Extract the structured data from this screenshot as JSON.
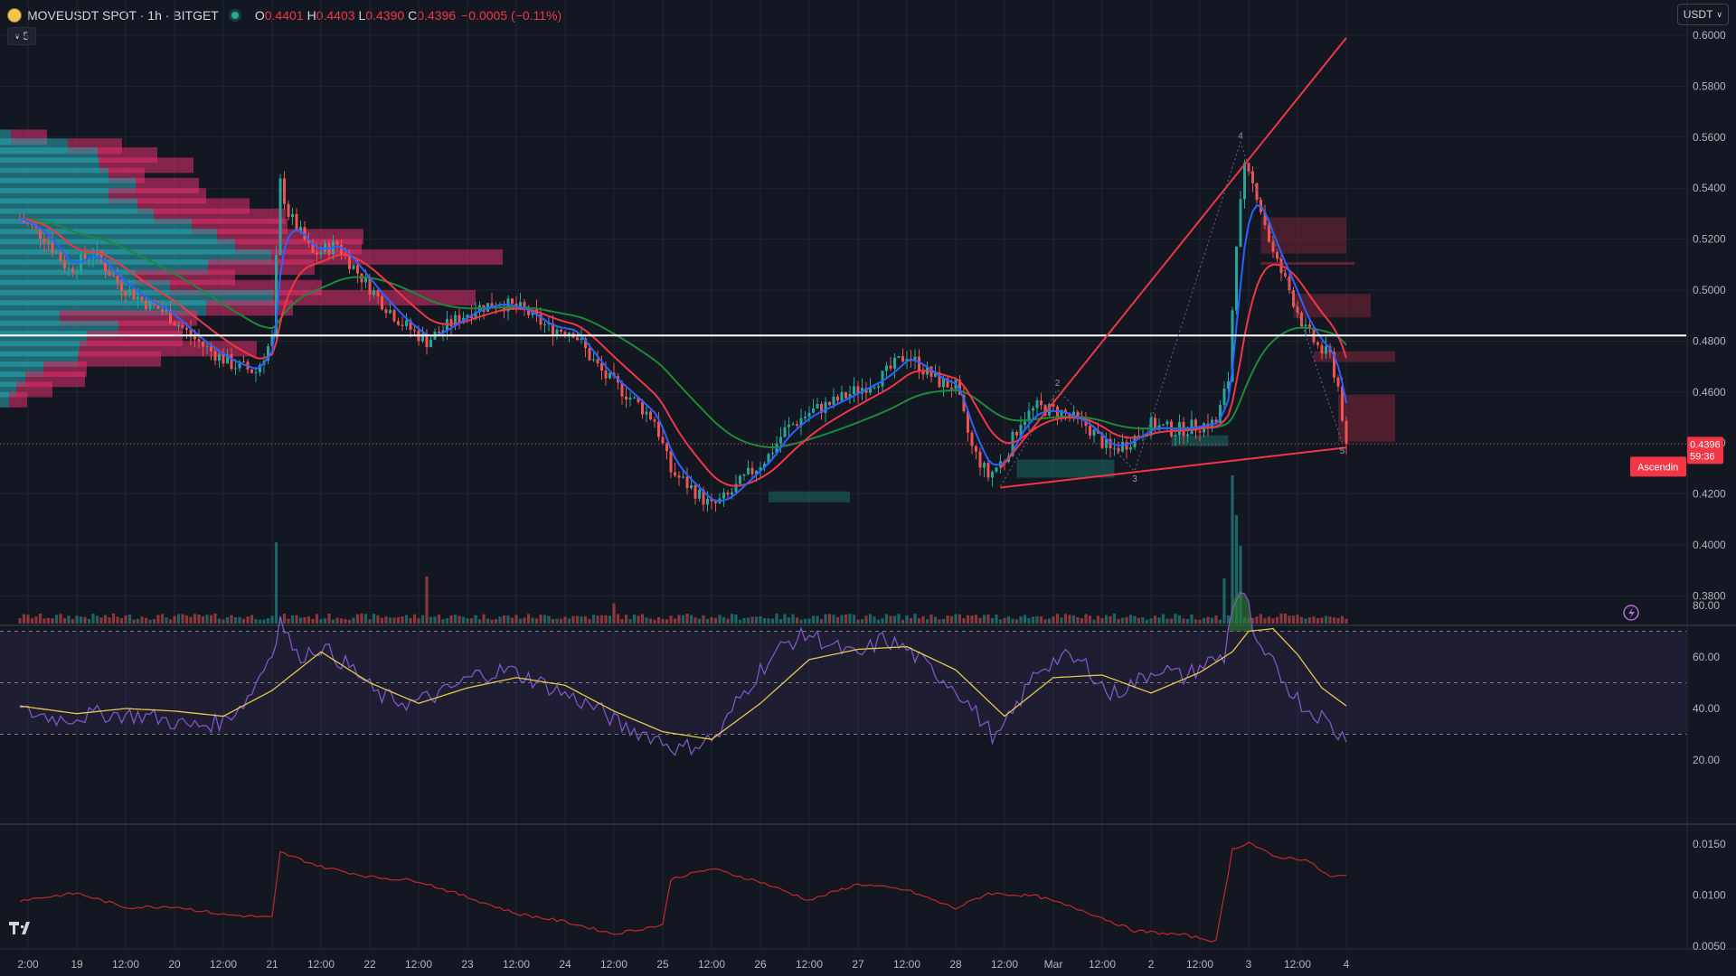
{
  "header": {
    "symbol": "MOVEUSDT SPOT · 1h · BITGET",
    "o_label": "O",
    "o": "0.4401",
    "h_label": "H",
    "h": "0.4403",
    "l_label": "L",
    "l": "0.4390",
    "c_label": "C",
    "c": "0.4396",
    "change": "−0.0005 (−0.11%)",
    "indicator_collapse": "5",
    "currency": "USDT"
  },
  "colors": {
    "background": "#131722",
    "up": "#26a69a",
    "down": "#ef5350",
    "ema_fast": "#2962ff",
    "ema_mid": "#f23645",
    "ema_slow": "#1b8a3a",
    "rsi": "#7e57c2",
    "rsi_ma": "#e6c84c",
    "vp_up": "#2aa9b5",
    "vp_down": "#e3306b"
  },
  "chart_data": [
    {
      "type": "candlestick",
      "yticks": [
        "0.6000",
        "0.5800",
        "0.5600",
        "0.5400",
        "0.5200",
        "0.5000",
        "0.4800",
        "0.4600",
        "0.4400",
        "0.4200",
        "0.4000",
        "0.3800"
      ],
      "ylim": [
        0.3705,
        0.6045
      ],
      "xticks": [
        {
          "label": "2:00",
          "hour": -24
        },
        {
          "label": "19",
          "hour": -12
        },
        {
          "label": "12:00",
          "hour": 0
        },
        {
          "label": "20",
          "hour": 12
        },
        {
          "label": "12:00",
          "hour": 24
        },
        {
          "label": "21",
          "hour": 36
        },
        {
          "label": "12:00",
          "hour": 48
        },
        {
          "label": "22",
          "hour": 60
        },
        {
          "label": "12:00",
          "hour": 72
        },
        {
          "label": "23",
          "hour": 84
        },
        {
          "label": "12:00",
          "hour": 96
        },
        {
          "label": "24",
          "hour": 108
        },
        {
          "label": "12:00",
          "hour": 120
        },
        {
          "label": "25",
          "hour": 132
        },
        {
          "label": "12:00",
          "hour": 144
        },
        {
          "label": "26",
          "hour": 156
        },
        {
          "label": "12:00",
          "hour": 168
        },
        {
          "label": "27",
          "hour": 180
        },
        {
          "label": "12:00",
          "hour": 192
        },
        {
          "label": "28",
          "hour": 204
        },
        {
          "label": "12:00",
          "hour": 216
        },
        {
          "label": "Mar",
          "hour": 228
        },
        {
          "label": "12:00",
          "hour": 240
        },
        {
          "label": "2",
          "hour": 252
        },
        {
          "label": "12:00",
          "hour": 264
        },
        {
          "label": "3",
          "hour": 276
        },
        {
          "label": "12:00",
          "hour": 288
        },
        {
          "label": "4",
          "hour": 300
        }
      ],
      "close_path": [
        [
          -26,
          0.528
        ],
        [
          -20,
          0.521
        ],
        [
          -14,
          0.508
        ],
        [
          -8,
          0.515
        ],
        [
          -2,
          0.503
        ],
        [
          4,
          0.496
        ],
        [
          10,
          0.491
        ],
        [
          16,
          0.482
        ],
        [
          20,
          0.477
        ],
        [
          26,
          0.471
        ],
        [
          32,
          0.468
        ],
        [
          36,
          0.481
        ],
        [
          38,
          0.542
        ],
        [
          40,
          0.53
        ],
        [
          46,
          0.514
        ],
        [
          52,
          0.518
        ],
        [
          56,
          0.509
        ],
        [
          62,
          0.497
        ],
        [
          68,
          0.487
        ],
        [
          74,
          0.48
        ],
        [
          80,
          0.487
        ],
        [
          86,
          0.493
        ],
        [
          92,
          0.495
        ],
        [
          98,
          0.492
        ],
        [
          104,
          0.485
        ],
        [
          110,
          0.484
        ],
        [
          114,
          0.474
        ],
        [
          118,
          0.466
        ],
        [
          124,
          0.458
        ],
        [
          130,
          0.449
        ],
        [
          134,
          0.429
        ],
        [
          140,
          0.421
        ],
        [
          144,
          0.415
        ],
        [
          148,
          0.419
        ],
        [
          152,
          0.426
        ],
        [
          158,
          0.435
        ],
        [
          162,
          0.445
        ],
        [
          168,
          0.452
        ],
        [
          174,
          0.456
        ],
        [
          180,
          0.461
        ],
        [
          186,
          0.466
        ],
        [
          192,
          0.475
        ],
        [
          196,
          0.469
        ],
        [
          200,
          0.464
        ],
        [
          204,
          0.462
        ],
        [
          208,
          0.438
        ],
        [
          212,
          0.427
        ],
        [
          216,
          0.434
        ],
        [
          220,
          0.449
        ],
        [
          224,
          0.454
        ],
        [
          230,
          0.452
        ],
        [
          236,
          0.447
        ],
        [
          242,
          0.437
        ],
        [
          246,
          0.44
        ],
        [
          252,
          0.447
        ],
        [
          258,
          0.445
        ],
        [
          264,
          0.447
        ],
        [
          268,
          0.448
        ],
        [
          271,
          0.465
        ],
        [
          273,
          0.52
        ],
        [
          275,
          0.547
        ],
        [
          278,
          0.538
        ],
        [
          282,
          0.514
        ],
        [
          286,
          0.5
        ],
        [
          290,
          0.484
        ],
        [
          294,
          0.476
        ],
        [
          296,
          0.474
        ],
        [
          298,
          0.462
        ],
        [
          300,
          0.4396
        ]
      ],
      "last_price": "0.4396",
      "countdown": "59:36",
      "pattern_label": "Ascendin",
      "pivot_labels": [
        "2",
        "3",
        "4",
        "5"
      ],
      "horizontal_level": 0.4822
    },
    {
      "type": "bar",
      "name": "Volume",
      "peaks": [
        [
          37,
          0.45
        ],
        [
          74,
          0.26
        ],
        [
          120,
          0.16
        ],
        [
          270,
          0.25
        ],
        [
          272,
          0.82
        ],
        [
          273,
          0.6
        ],
        [
          274,
          0.43
        ]
      ]
    },
    {
      "type": "line",
      "name": "RSI",
      "yticks": [
        "80.00",
        "60.00",
        "40.00",
        "20.00"
      ],
      "ylim": [
        13.6,
        87.9
      ],
      "bands": [
        30,
        50,
        70
      ],
      "path": [
        [
          -26,
          39
        ],
        [
          -16,
          36
        ],
        [
          -6,
          38
        ],
        [
          6,
          37
        ],
        [
          16,
          33
        ],
        [
          24,
          35
        ],
        [
          30,
          44
        ],
        [
          36,
          62
        ],
        [
          38,
          75
        ],
        [
          42,
          60
        ],
        [
          48,
          64
        ],
        [
          56,
          55
        ],
        [
          62,
          45
        ],
        [
          70,
          42
        ],
        [
          78,
          46
        ],
        [
          86,
          53
        ],
        [
          94,
          55
        ],
        [
          102,
          50
        ],
        [
          110,
          44
        ],
        [
          116,
          40
        ],
        [
          122,
          33
        ],
        [
          130,
          29
        ],
        [
          136,
          24
        ],
        [
          142,
          27
        ],
        [
          146,
          30
        ],
        [
          150,
          42
        ],
        [
          156,
          55
        ],
        [
          162,
          65
        ],
        [
          168,
          69
        ],
        [
          174,
          64
        ],
        [
          180,
          60
        ],
        [
          186,
          67
        ],
        [
          192,
          63
        ],
        [
          198,
          55
        ],
        [
          204,
          48
        ],
        [
          210,
          36
        ],
        [
          214,
          28
        ],
        [
          218,
          38
        ],
        [
          224,
          55
        ],
        [
          230,
          60
        ],
        [
          236,
          57
        ],
        [
          242,
          45
        ],
        [
          248,
          50
        ],
        [
          254,
          56
        ],
        [
          260,
          52
        ],
        [
          266,
          58
        ],
        [
          270,
          60
        ],
        [
          272,
          80
        ],
        [
          274,
          85
        ],
        [
          276,
          79
        ],
        [
          278,
          63
        ],
        [
          282,
          57
        ],
        [
          286,
          48
        ],
        [
          290,
          40
        ],
        [
          294,
          37
        ],
        [
          298,
          30
        ],
        [
          300,
          29
        ]
      ],
      "ma_path": [
        [
          -26,
          41
        ],
        [
          -12,
          38
        ],
        [
          0,
          40
        ],
        [
          12,
          39
        ],
        [
          24,
          37
        ],
        [
          36,
          47
        ],
        [
          48,
          62
        ],
        [
          60,
          50
        ],
        [
          72,
          42
        ],
        [
          84,
          48
        ],
        [
          96,
          52
        ],
        [
          108,
          49
        ],
        [
          120,
          39
        ],
        [
          132,
          31
        ],
        [
          144,
          28
        ],
        [
          156,
          42
        ],
        [
          168,
          59
        ],
        [
          180,
          63
        ],
        [
          192,
          64
        ],
        [
          204,
          55
        ],
        [
          216,
          37
        ],
        [
          228,
          52
        ],
        [
          240,
          53
        ],
        [
          252,
          46
        ],
        [
          264,
          54
        ],
        [
          272,
          62
        ],
        [
          276,
          70
        ],
        [
          282,
          71
        ],
        [
          288,
          61
        ],
        [
          294,
          48
        ],
        [
          300,
          41
        ]
      ]
    },
    {
      "type": "line",
      "name": "Volatility",
      "yticks": [
        "0.0150",
        "0.0100",
        "0.0050"
      ],
      "ylim": [
        0.00426,
        0.01564
      ],
      "path": [
        [
          -26,
          0.0095
        ],
        [
          -12,
          0.0102
        ],
        [
          0,
          0.0088
        ],
        [
          12,
          0.0089
        ],
        [
          24,
          0.0081
        ],
        [
          36,
          0.0078
        ],
        [
          38,
          0.0142
        ],
        [
          48,
          0.0128
        ],
        [
          60,
          0.0118
        ],
        [
          72,
          0.0114
        ],
        [
          84,
          0.0098
        ],
        [
          96,
          0.0082
        ],
        [
          108,
          0.0074
        ],
        [
          120,
          0.0062
        ],
        [
          132,
          0.0071
        ],
        [
          134,
          0.0116
        ],
        [
          144,
          0.0126
        ],
        [
          156,
          0.0113
        ],
        [
          168,
          0.0095
        ],
        [
          180,
          0.0111
        ],
        [
          192,
          0.0105
        ],
        [
          204,
          0.0087
        ],
        [
          212,
          0.0102
        ],
        [
          224,
          0.0099
        ],
        [
          236,
          0.0084
        ],
        [
          248,
          0.0065
        ],
        [
          260,
          0.0061
        ],
        [
          268,
          0.0055
        ],
        [
          272,
          0.0145
        ],
        [
          276,
          0.0152
        ],
        [
          282,
          0.0138
        ],
        [
          290,
          0.0135
        ],
        [
          296,
          0.0118
        ],
        [
          300,
          0.0119
        ]
      ]
    }
  ]
}
